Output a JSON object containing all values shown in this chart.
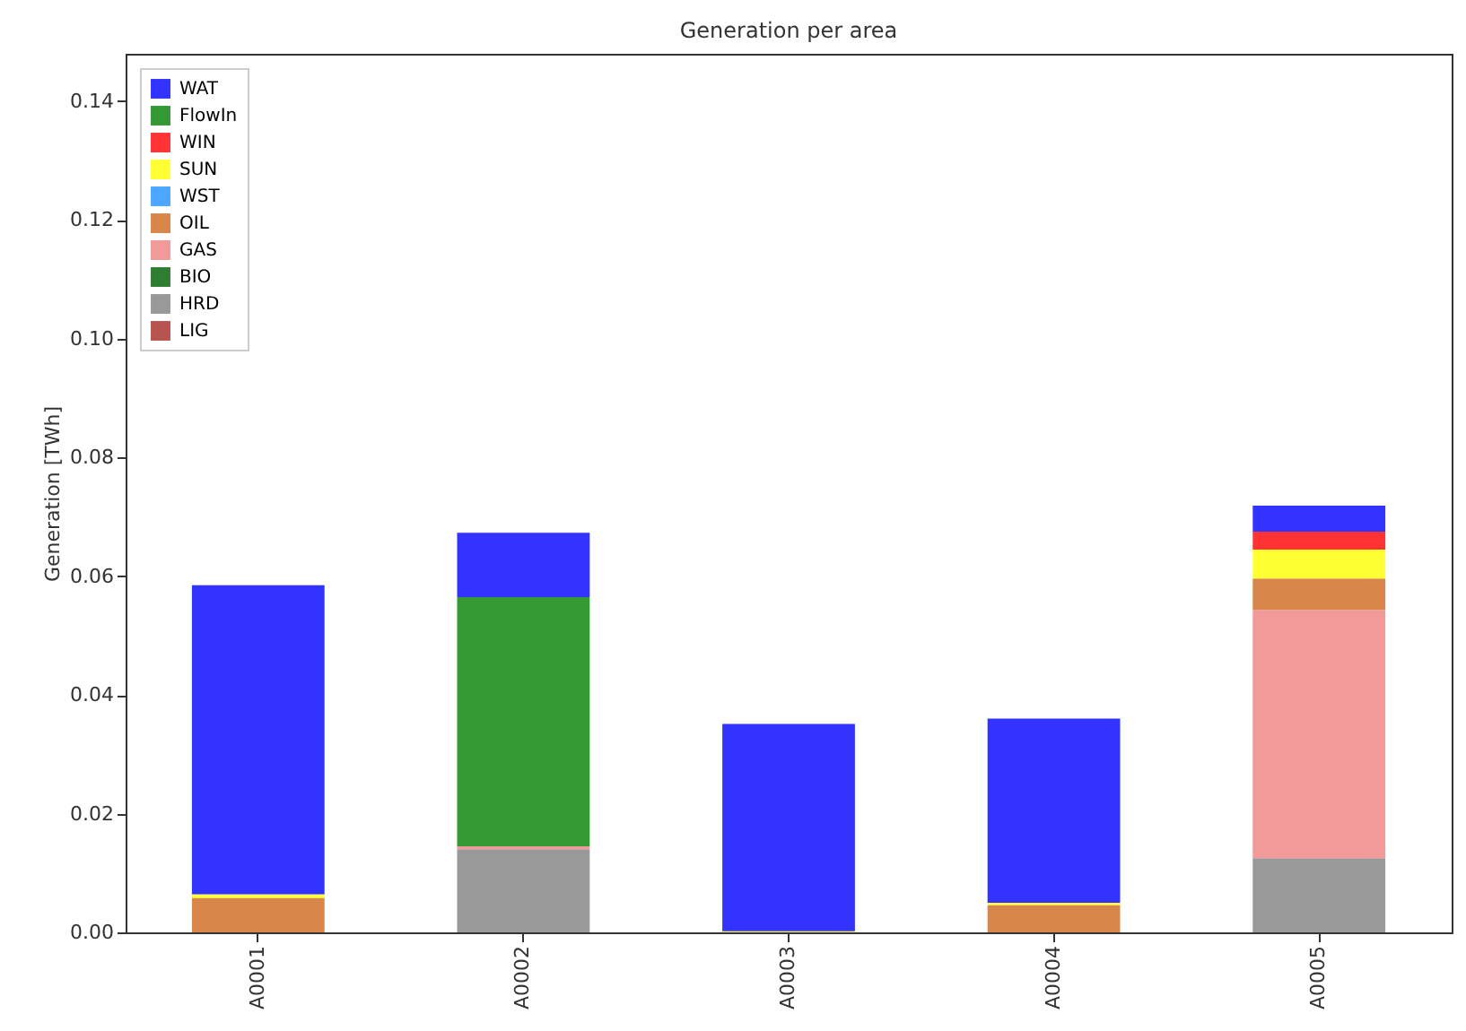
{
  "chart_data": {
    "type": "bar",
    "title": "Generation per area",
    "ylabel": "Generation [TWh]",
    "categories": [
      "A0001",
      "A0002",
      "A0003",
      "A0004",
      "A0005"
    ],
    "stacked": true,
    "legend": "top left",
    "grid": false,
    "ylim": [
      0,
      0.148
    ],
    "yticks": [
      {
        "value": 0,
        "label": "0.00"
      },
      0.02,
      0.04,
      0.06,
      0.08,
      {
        "value": 0.1,
        "label": "0.10"
      },
      0.12,
      0.14
    ],
    "series": [
      {
        "name": "LIG",
        "color": "#b85450",
        "values": [
          0,
          0,
          0,
          0,
          0
        ]
      },
      {
        "name": "HRD",
        "color": "#999999",
        "values": [
          0,
          0.014,
          0,
          0,
          0.0125
        ]
      },
      {
        "name": "BIO",
        "color": "#2e7d32",
        "values": [
          0,
          0,
          0,
          0,
          0
        ]
      },
      {
        "name": "GAS",
        "color": "#f29999",
        "values": [
          0,
          0.0005,
          0,
          0,
          0.0418
        ]
      },
      {
        "name": "OIL",
        "color": "#d9864a",
        "values": [
          0.0058,
          0,
          0,
          0.0046,
          0.0053
        ]
      },
      {
        "name": "WST",
        "color": "#4da6ff",
        "values": [
          0,
          0,
          0,
          0,
          0
        ]
      },
      {
        "name": "SUN",
        "color": "#ffff33",
        "values": [
          0.0006,
          0,
          0.0002,
          0.0004,
          0.0049
        ]
      },
      {
        "name": "WIN",
        "color": "#ff3333",
        "values": [
          0,
          0,
          0,
          0,
          0.003
        ]
      },
      {
        "name": "FlowIn",
        "color": "#339933",
        "values": [
          0,
          0.042,
          0,
          0,
          0
        ]
      },
      {
        "name": "WAT",
        "color": "#3333ff",
        "values": [
          0.0521,
          0.0108,
          0.0349,
          0.031,
          0.0044
        ]
      }
    ]
  }
}
